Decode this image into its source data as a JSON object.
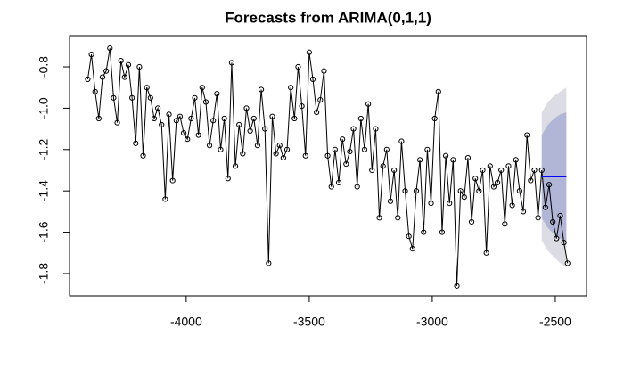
{
  "chart_data": {
    "type": "line",
    "title": "Forecasts from ARIMA(0,1,1)",
    "x": [
      -4400,
      -4385,
      -4370,
      -4355,
      -4340,
      -4325,
      -4310,
      -4295,
      -4280,
      -4265,
      -4250,
      -4235,
      -4220,
      -4205,
      -4190,
      -4175,
      -4160,
      -4145,
      -4130,
      -4115,
      -4100,
      -4085,
      -4070,
      -4055,
      -4040,
      -4025,
      -4010,
      -3995,
      -3980,
      -3965,
      -3950,
      -3935,
      -3920,
      -3905,
      -3890,
      -3875,
      -3860,
      -3845,
      -3830,
      -3815,
      -3800,
      -3785,
      -3770,
      -3755,
      -3740,
      -3725,
      -3710,
      -3695,
      -3680,
      -3665,
      -3650,
      -3635,
      -3620,
      -3605,
      -3590,
      -3575,
      -3560,
      -3545,
      -3530,
      -3515,
      -3500,
      -3485,
      -3470,
      -3455,
      -3440,
      -3425,
      -3410,
      -3395,
      -3380,
      -3365,
      -3350,
      -3335,
      -3320,
      -3305,
      -3290,
      -3275,
      -3260,
      -3245,
      -3230,
      -3215,
      -3200,
      -3185,
      -3170,
      -3155,
      -3140,
      -3125,
      -3110,
      -3095,
      -3080,
      -3065,
      -3050,
      -3035,
      -3020,
      -3005,
      -2990,
      -2975,
      -2960,
      -2945,
      -2930,
      -2915,
      -2900,
      -2885,
      -2870,
      -2855,
      -2840,
      -2825,
      -2810,
      -2795,
      -2780,
      -2765,
      -2750,
      -2735,
      -2720,
      -2705,
      -2690,
      -2675,
      -2660,
      -2645,
      -2630,
      -2615,
      -2600,
      -2585,
      -2570,
      -2555,
      -2540,
      -2525,
      -2510,
      -2495,
      -2480,
      -2465,
      -2450
    ],
    "series": [
      {
        "color": "#000000",
        "values": [
          -0.86,
          -0.74,
          -0.92,
          -1.05,
          -0.85,
          -0.82,
          -0.71,
          -0.95,
          -1.07,
          -0.77,
          -0.85,
          -0.79,
          -0.95,
          -1.17,
          -0.8,
          -1.23,
          -0.9,
          -0.95,
          -1.05,
          -1.0,
          -1.08,
          -1.44,
          -1.03,
          -1.35,
          -1.06,
          -1.04,
          -1.12,
          -1.15,
          -1.05,
          -0.95,
          -1.13,
          -0.9,
          -0.97,
          -1.18,
          -1.06,
          -0.93,
          -1.2,
          -1.05,
          -1.34,
          -0.78,
          -1.28,
          -1.08,
          -1.22,
          -1.0,
          -1.11,
          -1.05,
          -1.18,
          -0.91,
          -1.1,
          -1.75,
          -1.04,
          -1.22,
          -1.18,
          -1.24,
          -1.2,
          -0.9,
          -1.05,
          -0.8,
          -0.99,
          -1.23,
          -0.73,
          -0.86,
          -1.02,
          -0.96,
          -0.82,
          -1.23,
          -1.38,
          -1.2,
          -1.36,
          -1.15,
          -1.27,
          -1.21,
          -1.1,
          -1.38,
          -1.05,
          -1.2,
          -0.98,
          -1.3,
          -1.1,
          -1.53,
          -1.28,
          -1.2,
          -1.45,
          -1.3,
          -1.53,
          -1.16,
          -1.4,
          -1.62,
          -1.68,
          -1.4,
          -1.25,
          -1.6,
          -1.2,
          -1.46,
          -1.05,
          -0.92,
          -1.6,
          -1.23,
          -1.46,
          -1.25,
          -1.86,
          -1.4,
          -1.43,
          -1.24,
          -1.55,
          -1.34,
          -1.4,
          -1.3,
          -1.7,
          -1.28,
          -1.38,
          -1.36,
          -1.3,
          -1.56,
          -1.28,
          -1.47,
          -1.25,
          -1.4,
          -1.5,
          -1.13,
          -1.35,
          -1.3,
          -1.53,
          -1.3,
          -1.48,
          -1.37,
          -1.55,
          -1.63,
          -1.52,
          -1.65,
          -1.75
        ]
      }
    ],
    "forecast": {
      "x": [
        -2555,
        -2530,
        -2505,
        -2480,
        -2455
      ],
      "mean": [
        -1.33,
        -1.33,
        -1.33,
        -1.33,
        -1.33
      ],
      "lo80": [
        -1.53,
        -1.58,
        -1.61,
        -1.63,
        -1.65
      ],
      "hi80": [
        -1.13,
        -1.08,
        -1.05,
        -1.03,
        -1.02
      ],
      "lo95": [
        -1.64,
        -1.69,
        -1.72,
        -1.75,
        -1.77
      ],
      "hi95": [
        -1.02,
        -0.97,
        -0.94,
        -0.92,
        -0.9
      ],
      "color": "#0000ff",
      "color80": "#b1b5d6",
      "color95": "#dcdce4"
    },
    "xlim": [
      -4474,
      -2373
    ],
    "ylim": [
      -1.908,
      -0.649
    ],
    "xticks": [
      -4000,
      -3500,
      -3000,
      -2500
    ],
    "yticks": [
      -1.8,
      -1.6,
      -1.4,
      -1.2,
      {
        "value": -1.0,
        "label": "-1.0"
      },
      -0.8
    ]
  }
}
